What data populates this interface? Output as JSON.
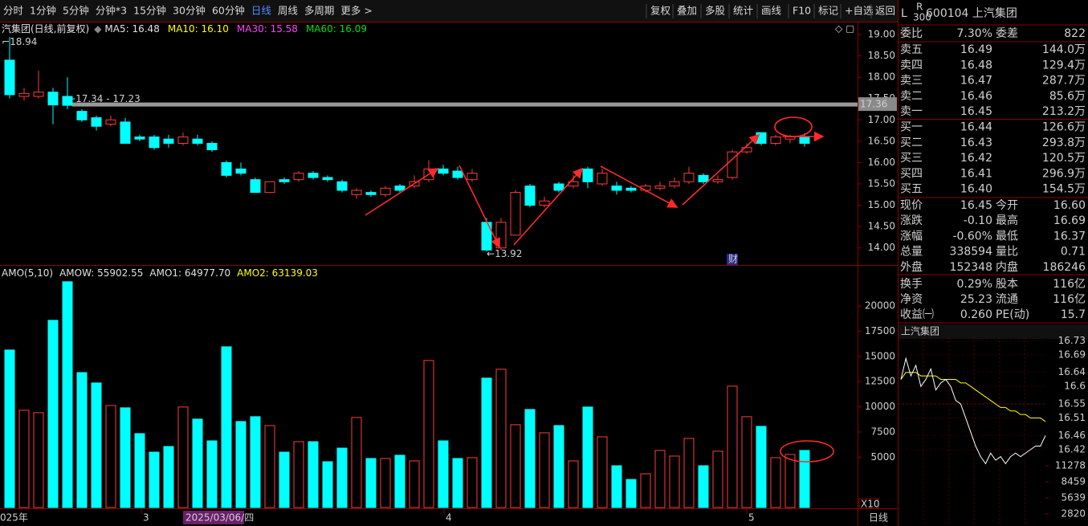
{
  "toolbar": {
    "periods": [
      "分时",
      "1分钟",
      "5分钟",
      "分钟*3",
      "15分钟",
      "30分钟",
      "60分钟",
      "日线",
      "周线",
      "多周期",
      "更多"
    ],
    "active_period": 7,
    "tools": [
      "复权",
      "叠加",
      "多股",
      "统计",
      "画线",
      "F10",
      "标记",
      "+自选",
      "返回"
    ]
  },
  "chart_data": [
    {
      "type": "candlestick",
      "title": "汽集团(日线,前复权)",
      "indicators": [
        {
          "label": "MA5: 16.48",
          "color": "#e0e0e0"
        },
        {
          "label": "MA10: 16.10",
          "color": "#ffff00"
        },
        {
          "label": "MA30: 15.58",
          "color": "#ff40ff"
        },
        {
          "label": "MA60: 16.09",
          "color": "#00e000"
        }
      ],
      "open": [
        18.4,
        17.55,
        17.55,
        17.65,
        17.55,
        17.2,
        17.05,
        16.9,
        16.95,
        16.6,
        16.6,
        16.55,
        16.45,
        16.55,
        16.45,
        16.0,
        15.85,
        15.6,
        15.3,
        15.6,
        15.6,
        15.75,
        15.65,
        15.55,
        15.25,
        15.3,
        15.25,
        15.45,
        15.45,
        15.6,
        15.85,
        15.8,
        15.6,
        14.6,
        14.0,
        14.3,
        15.45,
        15.0,
        15.5,
        15.45,
        15.85,
        15.5,
        15.45,
        15.4,
        15.35,
        15.4,
        15.45,
        15.55,
        15.7,
        15.55,
        15.65,
        16.25,
        16.7,
        16.45,
        16.55,
        16.6
      ],
      "close": [
        17.59,
        17.62,
        17.65,
        17.35,
        17.34,
        17.0,
        16.85,
        17.0,
        16.45,
        16.55,
        16.35,
        16.45,
        16.6,
        16.45,
        16.3,
        15.7,
        15.75,
        15.3,
        15.55,
        15.55,
        15.75,
        15.65,
        15.6,
        15.35,
        15.35,
        15.25,
        15.4,
        15.35,
        15.55,
        15.85,
        15.75,
        15.65,
        15.75,
        13.95,
        14.6,
        15.3,
        15.0,
        15.1,
        15.35,
        15.55,
        15.55,
        15.75,
        15.35,
        15.35,
        15.45,
        15.45,
        15.55,
        15.75,
        15.55,
        15.6,
        16.25,
        16.35,
        16.45,
        16.6,
        16.6,
        16.45
      ],
      "high": [
        18.94,
        17.75,
        18.15,
        17.75,
        18.0,
        17.25,
        17.1,
        17.1,
        17.05,
        16.65,
        16.65,
        16.65,
        16.7,
        16.65,
        16.5,
        16.05,
        16.0,
        15.65,
        15.55,
        15.65,
        15.8,
        15.8,
        15.7,
        15.6,
        15.4,
        15.35,
        15.45,
        15.5,
        15.7,
        16.05,
        15.95,
        15.9,
        15.85,
        14.7,
        14.7,
        15.35,
        15.5,
        15.2,
        15.55,
        15.7,
        15.9,
        15.85,
        15.55,
        15.45,
        15.5,
        15.55,
        15.65,
        15.9,
        15.75,
        15.7,
        16.3,
        16.45,
        16.7,
        16.65,
        16.65,
        16.69
      ],
      "low": [
        17.5,
        17.45,
        17.5,
        16.9,
        17.25,
        16.95,
        16.75,
        16.85,
        16.45,
        16.5,
        16.3,
        16.35,
        16.4,
        16.4,
        16.25,
        15.65,
        15.7,
        15.3,
        15.3,
        15.5,
        15.55,
        15.6,
        15.55,
        15.3,
        15.15,
        15.2,
        15.2,
        15.3,
        15.4,
        15.55,
        15.7,
        15.6,
        15.55,
        13.92,
        13.95,
        14.3,
        14.95,
        14.95,
        15.3,
        15.4,
        15.4,
        15.45,
        15.25,
        15.3,
        15.3,
        15.35,
        15.4,
        15.5,
        15.5,
        15.5,
        15.6,
        16.2,
        16.4,
        16.4,
        16.45,
        16.37
      ],
      "up_color": "#ff3c3c",
      "down_color": "#00ffff",
      "ylim": [
        13.6,
        19.3
      ],
      "yticks": [
        {
          "value": 19,
          "label": "19.00"
        },
        {
          "value": 18.5,
          "label": "18.50"
        },
        {
          "value": 18,
          "label": "18.00"
        },
        {
          "value": 17.5,
          "label": "17.50"
        },
        {
          "value": 17,
          "label": "17.00"
        },
        {
          "value": 16.5,
          "label": "16.50"
        },
        {
          "value": 16,
          "label": "16.00"
        },
        {
          "value": 15.5,
          "label": "15.50"
        },
        {
          "value": 15,
          "label": "15.00"
        },
        {
          "value": 14.5,
          "label": "14.50"
        },
        {
          "value": 14,
          "label": "14.00"
        }
      ],
      "reference_line": 17.36,
      "high_label": 18.94,
      "low_label": 13.92,
      "range_label": "17.34 - 17.23",
      "marker_label": "财"
    },
    {
      "type": "bar",
      "title": "AMO(5,10)",
      "indicators": [
        {
          "label": "AMOW: 55902.55",
          "color": "#e0e0e0"
        },
        {
          "label": "AMO1: 64977.70",
          "color": "#e0e0e0"
        },
        {
          "label": "AMO2: 63139.03",
          "color": "#ffff00"
        }
      ],
      "values": [
        15640,
        9660,
        9420,
        18590,
        22420,
        13400,
        12370,
        10130,
        9900,
        7340,
        5500,
        6060,
        9980,
        8780,
        6620,
        15960,
        8540,
        9020,
        8140,
        5500,
        6540,
        6540,
        4550,
        5900,
        8940,
        4870,
        4870,
        5190,
        4630,
        14600,
        6620,
        4870,
        4950,
        12850,
        13730,
        8220,
        9740,
        7420,
        8140,
        4630,
        9980,
        7020,
        4150,
        2790,
        3350,
        5670,
        5110,
        6860,
        4150,
        5590,
        12050,
        9020,
        8060,
        4950,
        5270,
        5670
      ],
      "ylim": [
        0,
        24000
      ],
      "yticks": [
        5000,
        7500,
        10000,
        12500,
        15000,
        17500,
        20000
      ],
      "scale_label": "X10",
      "x_labels": [
        "025年",
        "3",
        "2025/03/06/四",
        "4",
        "5"
      ],
      "period_label": "日线"
    }
  ],
  "quote": {
    "flag": "L",
    "badge_top": "R",
    "badge_bottom": "300",
    "code_name": "600104 上汽集团",
    "ratio": [
      {
        "label": "委比",
        "value": "7.30%",
        "color": "#ff4040"
      },
      {
        "label": "委差",
        "value": "822",
        "color": "#ff4040"
      }
    ],
    "order_book": [
      {
        "label": "卖五",
        "price": "16.49",
        "volume": "144.0万"
      },
      {
        "label": "卖四",
        "price": "16.48",
        "volume": "129.4万"
      },
      {
        "label": "卖三",
        "price": "16.47",
        "volume": "287.7万"
      },
      {
        "label": "卖二",
        "price": "16.46",
        "volume": "85.6万"
      },
      {
        "label": "卖一",
        "price": "16.45",
        "volume": "213.2万"
      },
      {
        "label": "买一",
        "price": "16.44",
        "volume": "126.6万"
      },
      {
        "label": "买二",
        "price": "16.43",
        "volume": "293.8万"
      },
      {
        "label": "买三",
        "price": "16.42",
        "volume": "120.5万"
      },
      {
        "label": "买四",
        "price": "16.41",
        "volume": "296.9万"
      },
      {
        "label": "买五",
        "price": "16.40",
        "volume": "154.5万"
      }
    ],
    "stats": [
      [
        {
          "label": "现价",
          "value": "16.45",
          "color": "#00e600"
        },
        {
          "label": "今开",
          "value": "16.60",
          "color": "#ff4040"
        }
      ],
      [
        {
          "label": "涨跌",
          "value": "-0.10",
          "color": "#00e600"
        },
        {
          "label": "最高",
          "value": "16.69",
          "color": "#ff4040"
        }
      ],
      [
        {
          "label": "涨幅",
          "value": "-0.60%",
          "color": "#00e600"
        },
        {
          "label": "最低",
          "value": "16.37",
          "color": "#00e600"
        }
      ],
      [
        {
          "label": "总量",
          "value": "338594",
          "color": "#ffff00"
        },
        {
          "label": "量比",
          "value": "0.71",
          "color": "#ffff00"
        }
      ],
      [
        {
          "label": "外盘",
          "value": "152348",
          "color": "#ff4040"
        },
        {
          "label": "内盘",
          "value": "186246",
          "color": "#00e600"
        }
      ]
    ],
    "fundamentals": [
      [
        {
          "label": "换手",
          "value": "0.29%",
          "color": "#f0f0f0"
        },
        {
          "label": "股本",
          "value": "116亿",
          "color": "#f0f0f0"
        }
      ],
      [
        {
          "label": "净资",
          "value": "25.23",
          "color": "#f0f0f0"
        },
        {
          "label": "流通",
          "value": "116亿",
          "color": "#f0f0f0"
        }
      ],
      [
        {
          "label": "收益㈠",
          "value": "0.260",
          "color": "#f0f0f0"
        },
        {
          "label": "PE(动)",
          "value": "15.7",
          "color": "#f0f0f0"
        }
      ]
    ]
  },
  "intraday": {
    "title": "上汽集团",
    "prices": [
      16.62,
      16.68,
      16.63,
      16.66,
      16.6,
      16.62,
      16.65,
      16.59,
      16.61,
      16.62,
      16.6,
      16.56,
      16.55,
      16.51,
      16.47,
      16.43,
      16.4,
      16.38,
      16.41,
      16.39,
      16.4,
      16.38,
      16.4,
      16.41,
      16.4,
      16.41,
      16.42,
      16.43,
      16.43,
      16.46
    ],
    "average": [
      16.62,
      16.64,
      16.64,
      16.64,
      16.63,
      16.63,
      16.63,
      16.63,
      16.62,
      16.62,
      16.62,
      16.62,
      16.61,
      16.61,
      16.6,
      16.59,
      16.58,
      16.57,
      16.56,
      16.55,
      16.54,
      16.54,
      16.53,
      16.53,
      16.52,
      16.52,
      16.51,
      16.51,
      16.51,
      16.5
    ],
    "price_color": "#ffffff",
    "average_color": "#ffff00",
    "up_color": "#ff4040",
    "down_color": "#00e600",
    "ylim": [
      16.39,
      16.74
    ],
    "yticks": [
      16.73,
      16.69,
      16.64,
      16.6,
      16.55,
      16.51,
      16.46,
      16.42
    ],
    "vlim": [
      0,
      12200
    ],
    "volume_ticks": [
      11278,
      8459,
      5639,
      2820
    ]
  }
}
